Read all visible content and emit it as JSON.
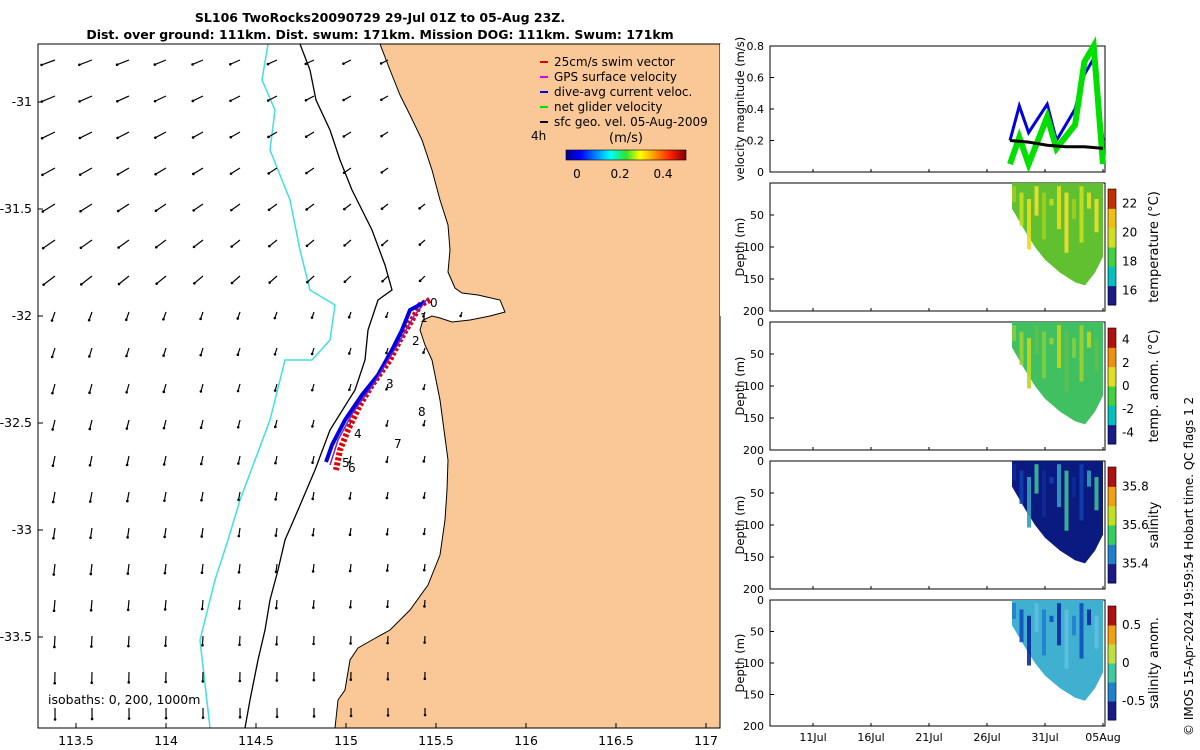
{
  "header": {
    "title_line1": "SL106 TwoRocks20090729 29-Jul 01Z to 05-Aug 23Z.",
    "title_line2": "Dist. over ground: 111km. Dist. swum: 171km. Mission DOG: 111km. Swum: 171km"
  },
  "map": {
    "legend": [
      {
        "label": "25cm/s swim vector",
        "color": "#e00000"
      },
      {
        "label": "GPS surface velocity",
        "color": "#e000e0"
      },
      {
        "label": "dive-avg current veloc.",
        "color": "#0000e0"
      },
      {
        "label": "net glider velocity",
        "color": "#00e000"
      },
      {
        "label": "sfc geo. vel. 05-Aug-2009",
        "color": "#000000"
      }
    ],
    "interval_label": "4h",
    "colorbar_title": "(m/s)",
    "colorbar_ticks": [
      "0",
      "0.2",
      "0.4"
    ],
    "x_ticks": [
      "113.5",
      "114",
      "114.5",
      "115",
      "115.5",
      "116",
      "116.5",
      "117"
    ],
    "y_ticks": [
      "-31",
      "-31.5",
      "-32",
      "-32.5",
      "-33",
      "-33.5"
    ],
    "isobaths_label": "isobaths: 0, 200, 1000m",
    "day_labels": [
      "0",
      "1",
      "2",
      "3",
      "4",
      "5",
      "6",
      "7",
      "8"
    ],
    "land_color": "#f9c896",
    "isobath_1000_color": "#40e0e0"
  },
  "chart_data": [
    {
      "type": "line",
      "ylabel": "velocity magnitude (m/s)",
      "ylim": [
        0,
        0.8
      ],
      "y_ticks": [
        "0",
        "0.2",
        "0.4",
        "0.6",
        "0.8"
      ],
      "series": [
        {
          "name": "dive-avg current veloc.",
          "color": "#0000e0",
          "x": [
            0,
            0.1,
            0.2,
            0.4,
            0.5,
            0.7,
            0.8,
            0.9,
            1.0
          ],
          "y": [
            0.2,
            0.42,
            0.25,
            0.43,
            0.2,
            0.4,
            0.62,
            0.72,
            0.2
          ]
        },
        {
          "name": "net glider velocity",
          "color": "#00e000",
          "x": [
            0,
            0.1,
            0.2,
            0.4,
            0.5,
            0.7,
            0.8,
            0.9,
            1.0
          ],
          "y": [
            0.05,
            0.22,
            0.05,
            0.35,
            0.15,
            0.3,
            0.7,
            0.8,
            0.05
          ]
        },
        {
          "name": "sfc geo. vel. 05-Aug-2009",
          "color": "#000000",
          "x": [
            0,
            0.2,
            0.4,
            0.6,
            0.8,
            1.0
          ],
          "y": [
            0.2,
            0.19,
            0.17,
            0.16,
            0.16,
            0.15
          ]
        }
      ]
    },
    {
      "type": "heatmap",
      "ylabel": "Depth (m)",
      "colorbar_label": "temperature (°C)",
      "y_ticks": [
        "50",
        "100",
        "150",
        "200"
      ],
      "cb_ticks": [
        "16",
        "18",
        "20",
        "22"
      ]
    },
    {
      "type": "heatmap",
      "ylabel": "Depth (m)",
      "colorbar_label": "temp. anom. (°C)",
      "y_ticks": [
        "0",
        "50",
        "100",
        "150",
        "200"
      ],
      "cb_ticks": [
        "-4",
        "-2",
        "0",
        "2",
        "4"
      ]
    },
    {
      "type": "heatmap",
      "ylabel": "Depth (m)",
      "colorbar_label": "salinity",
      "y_ticks": [
        "0",
        "50",
        "100",
        "150",
        "200"
      ],
      "cb_ticks": [
        "35.4",
        "35.6",
        "35.8"
      ]
    },
    {
      "type": "heatmap",
      "ylabel": "Depth (m)",
      "colorbar_label": "salinity anom.",
      "y_ticks": [
        "0",
        "50",
        "100",
        "150",
        "200"
      ],
      "cb_ticks": [
        "-0.5",
        "0",
        "0.5"
      ]
    }
  ],
  "time_axis": {
    "ticks": [
      "11Jul",
      "16Jul",
      "21Jul",
      "26Jul",
      "31Jul",
      "05Aug"
    ]
  },
  "footer": {
    "credit": "© IMOS 15-Apr-2024 19:59:54 Hobart time. QC flags 1  2"
  }
}
